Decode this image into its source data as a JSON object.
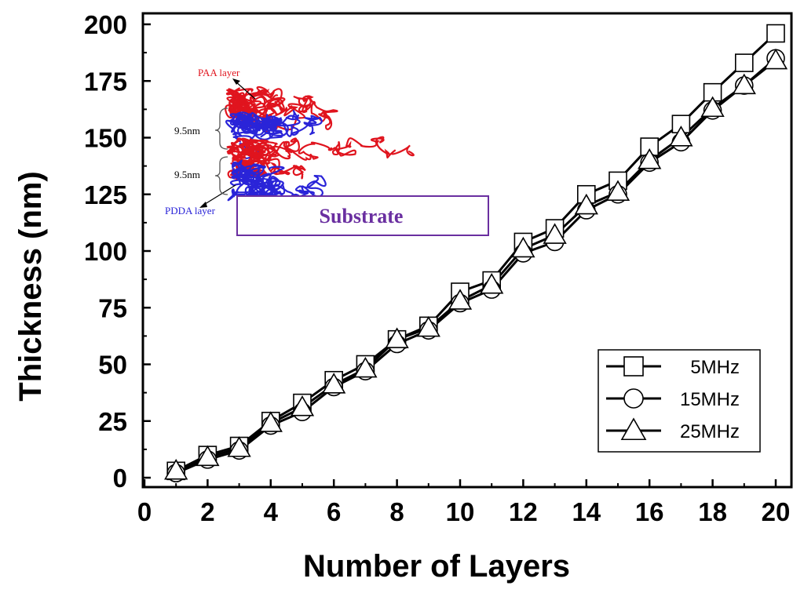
{
  "chart_data": {
    "type": "line",
    "xlabel": "Number of Layers",
    "ylabel": "Thickness (nm)",
    "xlim": [
      0,
      20
    ],
    "ylim": [
      0,
      200
    ],
    "xticks": [
      0,
      2,
      4,
      6,
      8,
      10,
      12,
      14,
      16,
      18,
      20
    ],
    "yticks": [
      0,
      25,
      50,
      75,
      100,
      125,
      150,
      175,
      200
    ],
    "grid": false,
    "legend_position": "bottom-right",
    "x": [
      1,
      2,
      3,
      4,
      5,
      6,
      7,
      8,
      9,
      10,
      11,
      12,
      13,
      14,
      15,
      16,
      17,
      18,
      19,
      20
    ],
    "series": [
      {
        "name": "5MHz",
        "marker": "square",
        "values": [
          3,
          10,
          14,
          25,
          33,
          43,
          50,
          61,
          67,
          82,
          87,
          104,
          110,
          125,
          131,
          146,
          156,
          170,
          183,
          196
        ]
      },
      {
        "name": "15MHz",
        "marker": "circle",
        "values": [
          2,
          8,
          12,
          23,
          29,
          40,
          47,
          59,
          65,
          77,
          83,
          99,
          104,
          118,
          125,
          139,
          148,
          162,
          173,
          185
        ]
      },
      {
        "name": "25MHz",
        "marker": "triangle",
        "values": [
          3,
          9,
          13,
          24,
          31,
          41,
          48,
          61,
          66,
          78,
          85,
          101,
          107,
          120,
          126,
          140,
          150,
          163,
          173,
          184
        ]
      }
    ],
    "inset": {
      "paa_label": "PAA layer",
      "pdda_label": "PDDA layer",
      "spacing_top": "9.5nm",
      "spacing_bottom": "9.5nm",
      "substrate_label": "Substrate",
      "paa_color": "#e0141e",
      "pdda_color": "#2a24d8",
      "substrate_color": "#6a2fa0"
    }
  }
}
